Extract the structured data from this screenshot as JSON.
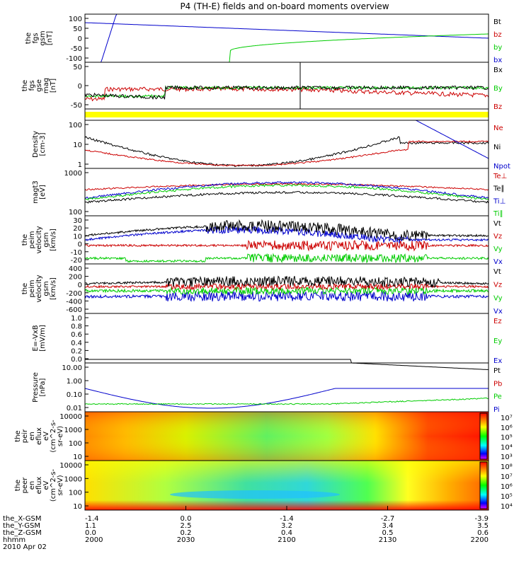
{
  "title": "P4 (TH-E) fields and on-board moments overview",
  "date_label": "2010 Apr 02",
  "colors": {
    "black": "#000000",
    "red": "#cc0000",
    "green": "#00cc00",
    "blue": "#0000cc",
    "yellow": "#ffff00"
  },
  "chart_data": [
    {
      "type": "line",
      "panel": "fgs_gsm",
      "ylabel": [
        "the",
        "fgs",
        "gsm",
        "[nT]"
      ],
      "ylim": [
        -100,
        100
      ],
      "yticks": [
        "100",
        "50",
        "0",
        "-50",
        "-100"
      ],
      "legend": [
        "Bt",
        "bz",
        "by",
        "bx"
      ],
      "series_colors": [
        "black",
        "red",
        "green",
        "blue"
      ]
    },
    {
      "type": "line",
      "panel": "fgs_gse_mag",
      "ylabel": [
        "the",
        "fgs",
        "gse",
        "mag",
        "[nT]"
      ],
      "ylim": [
        -100,
        100
      ],
      "yticks": [
        "50",
        "0",
        "-50"
      ],
      "legend": [
        "Bx",
        "By",
        "Bz"
      ],
      "series_colors": [
        "black",
        "green",
        "red"
      ]
    },
    {
      "type": "bar",
      "panel": "mode_bar",
      "color": "yellow"
    },
    {
      "type": "line",
      "panel": "density",
      "ylabel": [
        "Density",
        "[cm-3]"
      ],
      "log": true,
      "yticks": [
        "100",
        "10",
        "1"
      ],
      "legend": [
        "Ne",
        "Ni",
        "Npot"
      ],
      "series_colors": [
        "red",
        "black",
        "blue"
      ]
    },
    {
      "type": "line",
      "panel": "temperature",
      "ylabel": [
        "magt3",
        "[eV]"
      ],
      "log": true,
      "yticks": [
        "1000",
        "100"
      ],
      "legend": [
        "Te⊥",
        "Te∥",
        "Ti⊥",
        "Ti∥"
      ],
      "series_colors": [
        "red",
        "black",
        "blue",
        "green"
      ]
    },
    {
      "type": "line",
      "panel": "velocity_gsm",
      "ylabel": [
        "the",
        "peim",
        "velocity",
        "gsm",
        "[km/s]"
      ],
      "yticks": [
        "30",
        "20",
        "10",
        "0",
        "-10",
        "-20"
      ],
      "legend": [
        "Vt",
        "Vz",
        "Vy",
        "Vx"
      ],
      "series_colors": [
        "black",
        "red",
        "green",
        "blue"
      ]
    },
    {
      "type": "line",
      "panel": "velocity_gsm_2",
      "ylabel": [
        "the",
        "peim",
        "velocity",
        "gsm",
        "[km/s]"
      ],
      "yticks": [
        "400",
        "200",
        "0",
        "-200",
        "-400",
        "-600"
      ],
      "legend": [
        "Vt",
        "Vz",
        "Vy",
        "Vx"
      ],
      "series_colors": [
        "black",
        "red",
        "green",
        "blue"
      ]
    },
    {
      "type": "line",
      "panel": "e_field",
      "ylabel": [
        "E=-VxB",
        "[mV/m]"
      ],
      "ylim": [
        0,
        1
      ],
      "yticks": [
        "1.0",
        "0.8",
        "0.6",
        "0.4",
        "0.2",
        "0.0"
      ],
      "legend": [
        "Ez",
        "Ey",
        "Ex"
      ],
      "series_colors": [
        "red",
        "green",
        "blue"
      ]
    },
    {
      "type": "line",
      "panel": "pressure",
      "ylabel": [
        "Pressure",
        "[nPa]"
      ],
      "log": true,
      "yticks": [
        "10.00",
        "1.00",
        "0.10",
        "0.01"
      ],
      "legend": [
        "Pt",
        "Pb",
        "Pe",
        "Pi"
      ],
      "series_colors": [
        "black",
        "red",
        "green",
        "blue"
      ]
    },
    {
      "type": "heatmap",
      "panel": "ion_spectrogram",
      "ylabel": [
        "the",
        "peir",
        "en",
        "eflux",
        "eV",
        "(cm^2-s-",
        "sr-eV)"
      ],
      "yticks": [
        "10000",
        "1000",
        "100",
        "10"
      ],
      "colorbar": [
        "10⁷",
        "10⁶",
        "10⁵",
        "10⁴",
        "10³"
      ]
    },
    {
      "type": "heatmap",
      "panel": "electron_spectrogram",
      "ylabel": [
        "the",
        "peer",
        "en",
        "eflux",
        "eV",
        "(cm^2-s-",
        "sr-eV)"
      ],
      "yticks": [
        "10000",
        "1000",
        "100",
        "10"
      ],
      "colorbar": [
        "10⁸",
        "10⁷",
        "10⁶",
        "10⁵",
        "10⁴"
      ]
    }
  ],
  "x_axis": {
    "row_labels": [
      "the_X-GSM",
      "the_Y-GSM",
      "the_Z-GSM",
      "hhmm"
    ],
    "columns": [
      {
        "x": "-1.4",
        "y": "1.1",
        "z": "0.0",
        "t": "2000"
      },
      {
        "x": "0.0",
        "y": "2.5",
        "z": "0.2",
        "t": "2030"
      },
      {
        "x": "-1.4",
        "y": "3.2",
        "z": "0.4",
        "t": "2100"
      },
      {
        "x": "-2.7",
        "y": "3.4",
        "z": "0.5",
        "t": "2130"
      },
      {
        "x": "-3.9",
        "y": "3.5",
        "z": "0.6",
        "t": "2200"
      }
    ]
  }
}
